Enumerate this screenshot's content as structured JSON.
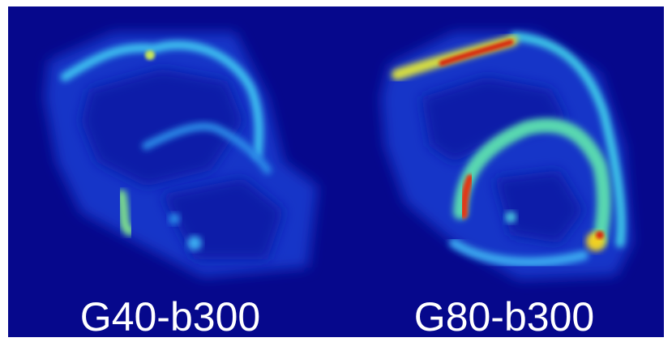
{
  "panels": [
    {
      "label": "G40-b300"
    },
    {
      "label": "G80-b300"
    }
  ]
}
